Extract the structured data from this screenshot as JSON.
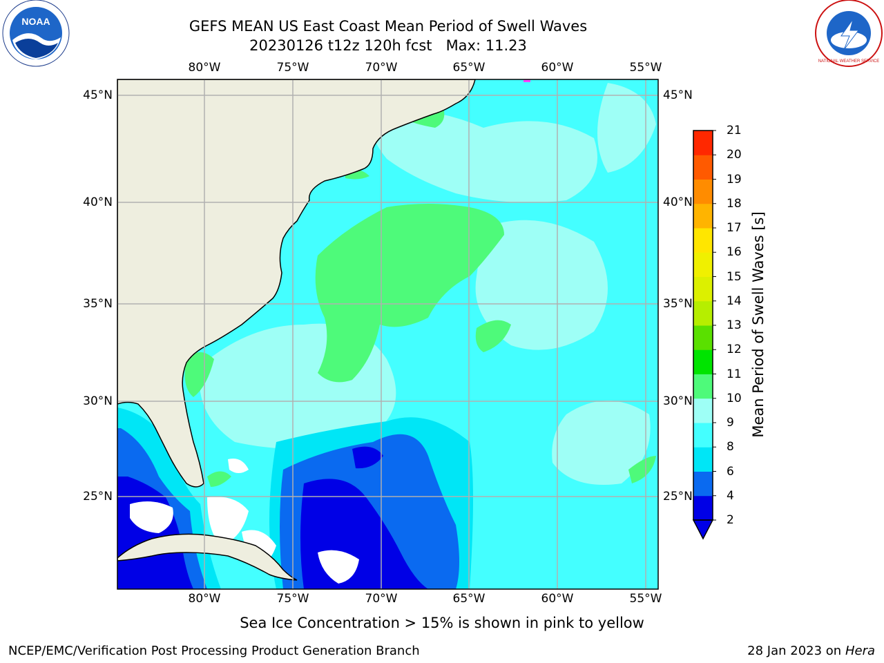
{
  "title": {
    "line1": "GEFS MEAN US East Coast Mean Period of Swell Waves",
    "line2": "20230126 t12z 120h fcst   Max: 11.23"
  },
  "axes": {
    "lon_labels": [
      "80°W",
      "75°W",
      "70°W",
      "65°W",
      "60°W",
      "55°W"
    ],
    "lat_labels": [
      "45°N",
      "40°N",
      "35°N",
      "30°N",
      "25°N"
    ]
  },
  "colorbar": {
    "title": "Mean Period of Swell Waves [s]",
    "labels": [
      "2",
      "4",
      "6",
      "8",
      "9",
      "10",
      "11",
      "12",
      "13",
      "14",
      "15",
      "16",
      "17",
      "18",
      "19",
      "20",
      "21"
    ],
    "colors": [
      "#0000e6",
      "#0a6af0",
      "#00e6f6",
      "#44ffff",
      "#9efff6",
      "#4efa7a",
      "#00e400",
      "#5ae000",
      "#b6ee00",
      "#dcf000",
      "#f0f000",
      "#ffe600",
      "#ffb400",
      "#ff8c00",
      "#ff5a00",
      "#ff2800",
      "#ff0000"
    ]
  },
  "footer": {
    "note": "Sea Ice Concentration > 15% is shown in pink to yellow",
    "credit": "NCEP/EMC/Verification Post Processing Product Generation Branch",
    "date": "28 Jan 2023 on ",
    "host": "Hera"
  },
  "logos": {
    "noaa_text": "NOAA",
    "nws_text": "NATIONAL WEATHER SERVICE"
  },
  "colors": {
    "land": "#eeeedf",
    "grid": "#b0b0b0",
    "sea_light_cyan": "#9efff6",
    "sea_cyan": "#44ffff",
    "sea_mid_cyan": "#00e6f6",
    "sea_blue": "#0a6af0",
    "sea_deep_blue": "#0000e6",
    "swell_green": "#4efa7a"
  }
}
